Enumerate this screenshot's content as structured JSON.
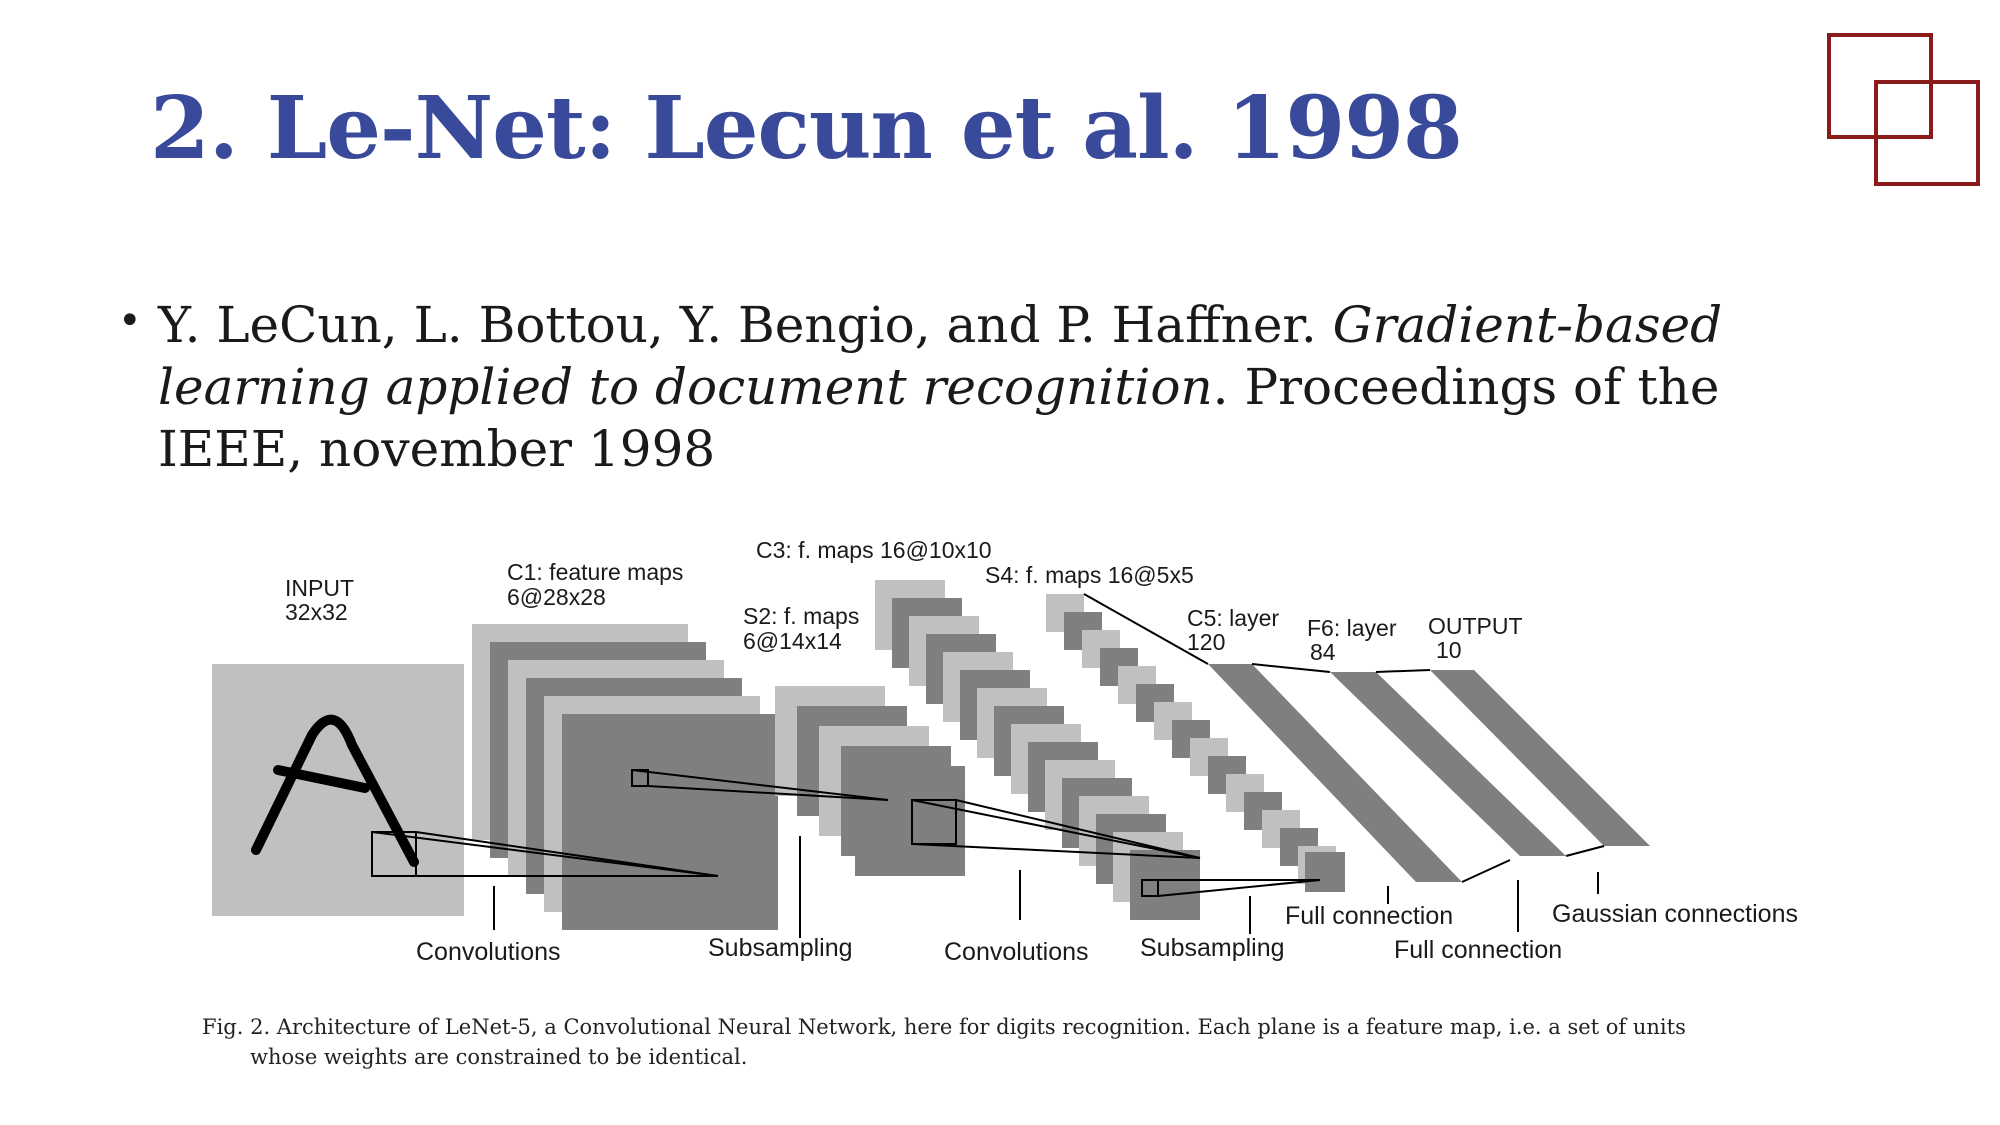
{
  "slide": {
    "title": "2. Le-Net: Lecun et al. 1998",
    "accent_color": "#3a4a9a",
    "logo_color": "#8b1a1a",
    "logo_icon": "overlapping-squares-icon"
  },
  "reference": {
    "authors": "Y. LeCun, L. Bottou, Y. Bengio, and P. Haffner.",
    "paper_title": "Gradient-based learning applied to document recognition",
    "venue": ". Proceedings of the IEEE, november 1998"
  },
  "diagram": {
    "input_label": "INPUT",
    "input_size": "32x32",
    "c1_label": "C1: feature maps",
    "c1_size": "6@28x28",
    "s2_label": "S2: f. maps",
    "s2_size": "6@14x14",
    "c3_label": "C3: f. maps 16@10x10",
    "s4_label": "S4: f. maps 16@5x5",
    "c5_label": "C5: layer",
    "c5_size": "120",
    "f6_label": "F6: layer",
    "f6_size": "84",
    "output_label": "OUTPUT",
    "output_size": "10",
    "op_convolutions_1": "Convolutions",
    "op_subsampling_1": "Subsampling",
    "op_convolutions_2": "Convolutions",
    "op_subsampling_2": "Subsampling",
    "op_full_connection_1": "Full connection",
    "op_full_connection_2": "Full connection",
    "op_gaussian": "Gaussian connections"
  },
  "caption": {
    "line1": "Fig. 2.   Architecture of LeNet-5, a Convolutional Neural Network, here for digits recognition.  Each plane is a feature map, i.e. a set of units",
    "line2": "whose weights are constrained to be identical."
  }
}
